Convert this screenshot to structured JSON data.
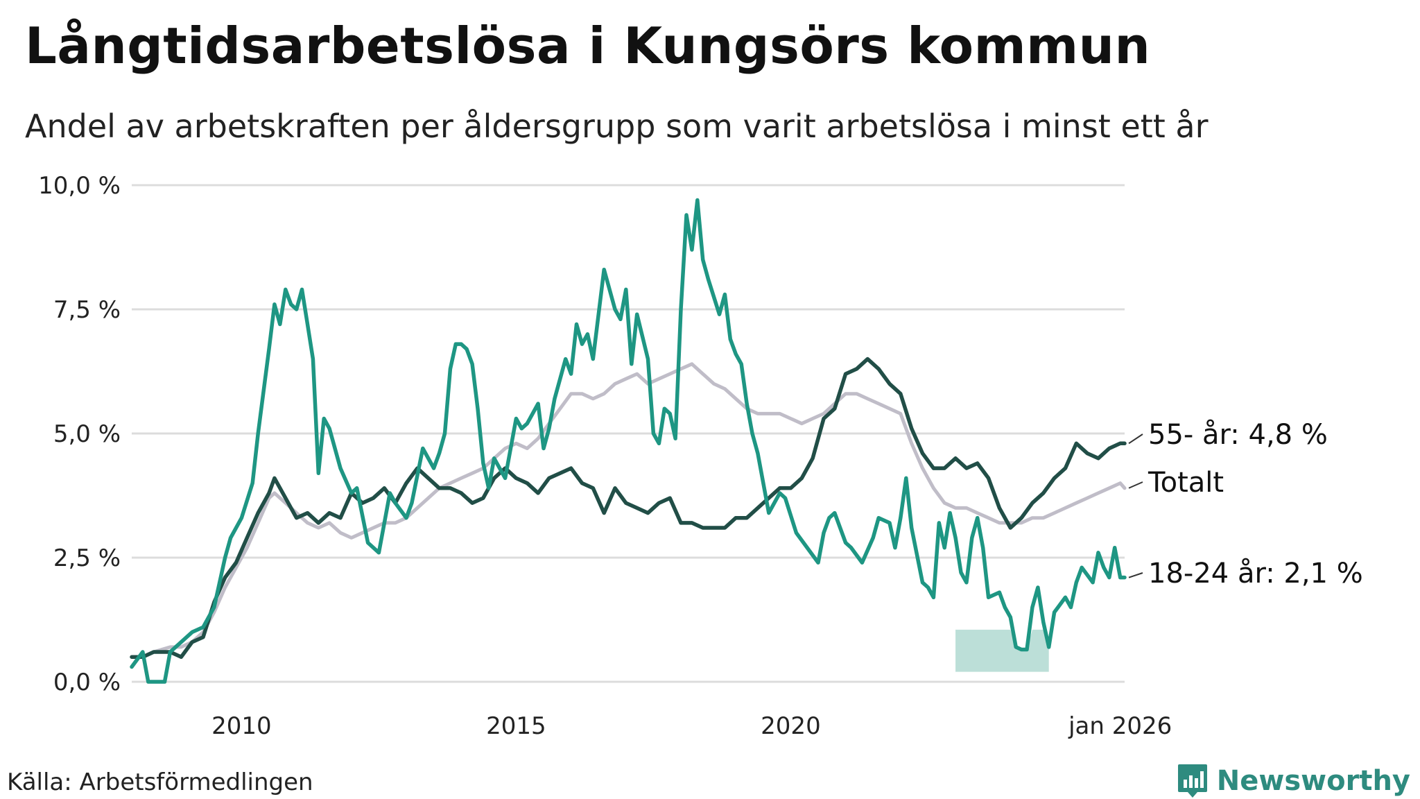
{
  "title": "Långtidsarbetslösa i Kungsörs kommun",
  "subtitle": "Andel av arbetskraften per åldersgrupp som varit arbetslösa i minst ett år",
  "source": "Källa: Arbetsförmedlingen",
  "brand": "Newsworthy",
  "colors": {
    "young": "#1e9683",
    "old": "#214e47",
    "total": "#c0bdc8",
    "grid": "#dcdcdc",
    "band": "#9fd1c7",
    "brand": "#2e8b7f"
  },
  "chart_data": {
    "type": "line",
    "title": "Långtidsarbetslösa i Kungsörs kommun",
    "ylabel": "",
    "xlabel": "",
    "ylim": [
      0,
      10
    ],
    "xlim": [
      2008.0,
      2026.08
    ],
    "y_ticks": [
      {
        "value": 0,
        "label": "0,0 %"
      },
      {
        "value": 2.5,
        "label": "2,5 %"
      },
      {
        "value": 5,
        "label": "5,0 %"
      },
      {
        "value": 7.5,
        "label": "7,5 %"
      },
      {
        "value": 10,
        "label": "10,0 %"
      }
    ],
    "x_ticks": [
      {
        "value": 2010,
        "label": "2010"
      },
      {
        "value": 2015,
        "label": "2015"
      },
      {
        "value": 2020,
        "label": "2020"
      },
      {
        "value": 2026.0,
        "label": "jan 2026"
      }
    ],
    "series": [
      {
        "name": "18-24 år",
        "label": "18-24 år: 2,1 %",
        "last_value": 2.1,
        "color_key": "young",
        "x": [
          2008.0,
          2008.2,
          2008.3,
          2008.6,
          2008.7,
          2008.9,
          2009.1,
          2009.3,
          2009.5,
          2009.7,
          2009.8,
          2010.0,
          2010.2,
          2010.3,
          2010.5,
          2010.6,
          2010.7,
          2010.8,
          2010.9,
          2011.0,
          2011.1,
          2011.2,
          2011.3,
          2011.4,
          2011.5,
          2011.6,
          2011.8,
          2012.0,
          2012.1,
          2012.3,
          2012.5,
          2012.7,
          2012.8,
          2013.0,
          2013.1,
          2013.3,
          2013.5,
          2013.6,
          2013.7,
          2013.8,
          2013.9,
          2014.0,
          2014.1,
          2014.2,
          2014.3,
          2014.4,
          2014.5,
          2014.6,
          2014.8,
          2015.0,
          2015.1,
          2015.2,
          2015.4,
          2015.5,
          2015.6,
          2015.7,
          2015.9,
          2016.0,
          2016.1,
          2016.2,
          2016.3,
          2016.4,
          2016.6,
          2016.8,
          2016.9,
          2017.0,
          2017.1,
          2017.2,
          2017.4,
          2017.5,
          2017.6,
          2017.7,
          2017.8,
          2017.9,
          2018.0,
          2018.1,
          2018.2,
          2018.3,
          2018.4,
          2018.5,
          2018.7,
          2018.8,
          2018.9,
          2019.0,
          2019.1,
          2019.2,
          2019.3,
          2019.4,
          2019.6,
          2019.8,
          2019.9,
          2020.1,
          2020.3,
          2020.5,
          2020.6,
          2020.7,
          2020.8,
          2021.0,
          2021.1,
          2021.3,
          2021.5,
          2021.6,
          2021.8,
          2021.9,
          2022.0,
          2022.1,
          2022.2,
          2022.4,
          2022.5,
          2022.6,
          2022.7,
          2022.8,
          2022.9,
          2023.0,
          2023.1,
          2023.2,
          2023.3,
          2023.4,
          2023.5,
          2023.6,
          2023.8,
          2023.9,
          2024.0,
          2024.1,
          2024.2,
          2024.3,
          2024.4,
          2024.5,
          2024.6,
          2024.7,
          2024.8,
          2025.0,
          2025.1,
          2025.2,
          2025.3,
          2025.5,
          2025.6,
          2025.7,
          2025.8,
          2025.9,
          2026.0,
          2026.08
        ],
        "values": [
          0.3,
          0.6,
          0.0,
          0.0,
          0.6,
          0.8,
          1.0,
          1.1,
          1.5,
          2.5,
          2.9,
          3.3,
          4.0,
          5.0,
          6.7,
          7.6,
          7.2,
          7.9,
          7.6,
          7.5,
          7.9,
          7.2,
          6.5,
          4.2,
          5.3,
          5.1,
          4.3,
          3.8,
          3.9,
          2.8,
          2.6,
          3.8,
          3.6,
          3.3,
          3.6,
          4.7,
          4.3,
          4.6,
          5.0,
          6.3,
          6.8,
          6.8,
          6.7,
          6.4,
          5.5,
          4.4,
          3.9,
          4.5,
          4.1,
          5.3,
          5.1,
          5.2,
          5.6,
          4.7,
          5.1,
          5.7,
          6.5,
          6.2,
          7.2,
          6.8,
          7.0,
          6.5,
          8.3,
          7.5,
          7.3,
          7.9,
          6.4,
          7.4,
          6.5,
          5.0,
          4.8,
          5.5,
          5.4,
          4.9,
          7.5,
          9.4,
          8.7,
          9.7,
          8.5,
          8.1,
          7.4,
          7.8,
          6.9,
          6.6,
          6.4,
          5.6,
          5.0,
          4.6,
          3.4,
          3.8,
          3.7,
          3.0,
          2.7,
          2.4,
          3.0,
          3.3,
          3.4,
          2.8,
          2.7,
          2.4,
          2.9,
          3.3,
          3.2,
          2.7,
          3.3,
          4.1,
          3.1,
          2.0,
          1.9,
          1.7,
          3.2,
          2.7,
          3.4,
          2.9,
          2.2,
          2.0,
          2.9,
          3.3,
          2.7,
          1.7,
          1.8,
          1.5,
          1.3,
          0.7,
          0.65,
          0.65,
          1.5,
          1.9,
          1.2,
          0.7,
          1.4,
          1.7,
          1.5,
          2.0,
          2.3,
          2.0,
          2.6,
          2.3,
          2.1,
          2.7,
          2.1,
          2.1
        ],
        "shaded_low_values_from": 2023.0,
        "shaded_low_values_to": 2024.7
      },
      {
        "name": "55- år",
        "label": "55- år: 4,8 %",
        "last_value": 4.8,
        "color_key": "old",
        "x": [
          2008.0,
          2008.2,
          2008.4,
          2008.7,
          2008.9,
          2009.1,
          2009.3,
          2009.5,
          2009.7,
          2009.9,
          2010.1,
          2010.3,
          2010.5,
          2010.6,
          2010.8,
          2011.0,
          2011.2,
          2011.4,
          2011.6,
          2011.8,
          2012.0,
          2012.2,
          2012.4,
          2012.6,
          2012.8,
          2013.0,
          2013.2,
          2013.4,
          2013.6,
          2013.8,
          2014.0,
          2014.2,
          2014.4,
          2014.6,
          2014.8,
          2015.0,
          2015.2,
          2015.4,
          2015.6,
          2015.8,
          2016.0,
          2016.2,
          2016.4,
          2016.6,
          2016.8,
          2017.0,
          2017.2,
          2017.4,
          2017.6,
          2017.8,
          2018.0,
          2018.2,
          2018.4,
          2018.6,
          2018.8,
          2019.0,
          2019.2,
          2019.4,
          2019.6,
          2019.8,
          2020.0,
          2020.2,
          2020.4,
          2020.6,
          2020.8,
          2021.0,
          2021.2,
          2021.4,
          2021.6,
          2021.8,
          2022.0,
          2022.2,
          2022.4,
          2022.6,
          2022.8,
          2023.0,
          2023.2,
          2023.4,
          2023.6,
          2023.8,
          2024.0,
          2024.2,
          2024.4,
          2024.6,
          2024.8,
          2025.0,
          2025.2,
          2025.4,
          2025.6,
          2025.8,
          2026.0,
          2026.08
        ],
        "values": [
          0.5,
          0.5,
          0.6,
          0.6,
          0.5,
          0.8,
          0.9,
          1.6,
          2.1,
          2.4,
          2.9,
          3.4,
          3.8,
          4.1,
          3.7,
          3.3,
          3.4,
          3.2,
          3.4,
          3.3,
          3.8,
          3.6,
          3.7,
          3.9,
          3.6,
          4.0,
          4.3,
          4.1,
          3.9,
          3.9,
          3.8,
          3.6,
          3.7,
          4.1,
          4.3,
          4.1,
          4.0,
          3.8,
          4.1,
          4.2,
          4.3,
          4.0,
          3.9,
          3.4,
          3.9,
          3.6,
          3.5,
          3.4,
          3.6,
          3.7,
          3.2,
          3.2,
          3.1,
          3.1,
          3.1,
          3.3,
          3.3,
          3.5,
          3.7,
          3.9,
          3.9,
          4.1,
          4.5,
          5.3,
          5.5,
          6.2,
          6.3,
          6.5,
          6.3,
          6.0,
          5.8,
          5.1,
          4.6,
          4.3,
          4.3,
          4.5,
          4.3,
          4.4,
          4.1,
          3.5,
          3.1,
          3.3,
          3.6,
          3.8,
          4.1,
          4.3,
          4.8,
          4.6,
          4.5,
          4.7,
          4.8,
          4.8
        ]
      },
      {
        "name": "Totalt",
        "label": "Totalt",
        "last_value": 3.9,
        "color_key": "total",
        "x": [
          2008.0,
          2008.2,
          2008.4,
          2008.7,
          2008.9,
          2009.1,
          2009.3,
          2009.5,
          2009.7,
          2009.9,
          2010.1,
          2010.3,
          2010.5,
          2010.6,
          2010.8,
          2011.0,
          2011.2,
          2011.4,
          2011.6,
          2011.8,
          2012.0,
          2012.2,
          2012.4,
          2012.6,
          2012.8,
          2013.0,
          2013.2,
          2013.4,
          2013.6,
          2013.8,
          2014.0,
          2014.2,
          2014.4,
          2014.6,
          2014.8,
          2015.0,
          2015.2,
          2015.4,
          2015.6,
          2015.8,
          2016.0,
          2016.2,
          2016.4,
          2016.6,
          2016.8,
          2017.0,
          2017.2,
          2017.4,
          2017.6,
          2017.8,
          2018.0,
          2018.2,
          2018.4,
          2018.6,
          2018.8,
          2019.0,
          2019.2,
          2019.4,
          2019.6,
          2019.8,
          2020.0,
          2020.2,
          2020.4,
          2020.6,
          2020.8,
          2021.0,
          2021.2,
          2021.4,
          2021.6,
          2021.8,
          2022.0,
          2022.2,
          2022.4,
          2022.6,
          2022.8,
          2023.0,
          2023.2,
          2023.4,
          2023.6,
          2023.8,
          2024.0,
          2024.2,
          2024.4,
          2024.6,
          2024.8,
          2025.0,
          2025.2,
          2025.4,
          2025.6,
          2025.8,
          2026.0,
          2026.08
        ],
        "values": [
          0.5,
          0.5,
          0.6,
          0.7,
          0.7,
          0.8,
          1.0,
          1.4,
          1.9,
          2.3,
          2.7,
          3.2,
          3.7,
          3.8,
          3.6,
          3.4,
          3.2,
          3.1,
          3.2,
          3.0,
          2.9,
          3.0,
          3.1,
          3.2,
          3.2,
          3.3,
          3.5,
          3.7,
          3.9,
          4.0,
          4.1,
          4.2,
          4.3,
          4.5,
          4.7,
          4.8,
          4.7,
          4.9,
          5.2,
          5.5,
          5.8,
          5.8,
          5.7,
          5.8,
          6.0,
          6.1,
          6.2,
          6.0,
          6.1,
          6.2,
          6.3,
          6.4,
          6.2,
          6.0,
          5.9,
          5.7,
          5.5,
          5.4,
          5.4,
          5.4,
          5.3,
          5.2,
          5.3,
          5.4,
          5.6,
          5.8,
          5.8,
          5.7,
          5.6,
          5.5,
          5.4,
          4.8,
          4.3,
          3.9,
          3.6,
          3.5,
          3.5,
          3.4,
          3.3,
          3.2,
          3.2,
          3.2,
          3.3,
          3.3,
          3.4,
          3.5,
          3.6,
          3.7,
          3.8,
          3.9,
          4.0,
          3.9
        ]
      }
    ]
  }
}
